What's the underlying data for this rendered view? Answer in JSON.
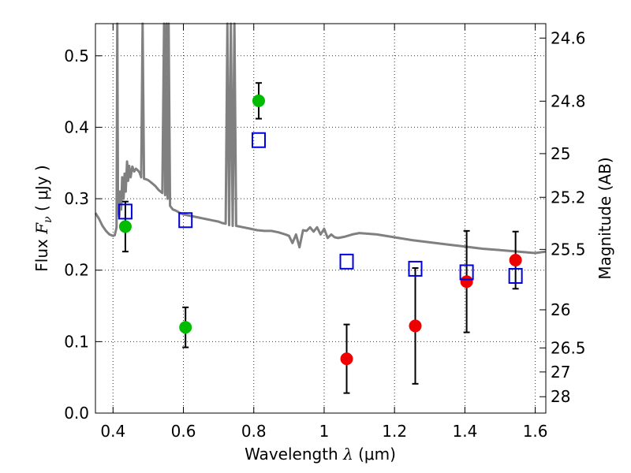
{
  "chart_data": {
    "type": "scatter",
    "xlabel": {
      "pre": "Wavelength  ",
      "sym": "λ",
      "post": " (μm)"
    },
    "ylabel": {
      "pre": "Flux  ",
      "sym": "F",
      "sub": "ν",
      "post": "  ( μJy )"
    },
    "y2label": "Magnitude (AB)",
    "xlim": [
      0.35,
      1.63
    ],
    "ylim": [
      0.0,
      0.545
    ],
    "grid": true,
    "x_ticks": [
      {
        "v": 0.4,
        "label": "0.4"
      },
      {
        "v": 0.6,
        "label": "0.6"
      },
      {
        "v": 0.8,
        "label": "0.8"
      },
      {
        "v": 1.0,
        "label": "1"
      },
      {
        "v": 1.2,
        "label": "1.2"
      },
      {
        "v": 1.4,
        "label": "1.4"
      },
      {
        "v": 1.6,
        "label": "1.6"
      }
    ],
    "y_ticks": [
      {
        "v": 0.0,
        "label": "0.0"
      },
      {
        "v": 0.1,
        "label": "0.1"
      },
      {
        "v": 0.2,
        "label": "0.2"
      },
      {
        "v": 0.3,
        "label": "0.3"
      },
      {
        "v": 0.4,
        "label": "0.4"
      },
      {
        "v": 0.5,
        "label": "0.5"
      }
    ],
    "y2_ticks": [
      {
        "mag": 24.6,
        "label": "24.6"
      },
      {
        "mag": 24.8,
        "label": "24.8"
      },
      {
        "mag": 25.0,
        "label": "25"
      },
      {
        "mag": 25.2,
        "label": "25.2"
      },
      {
        "mag": 25.5,
        "label": "25.5"
      },
      {
        "mag": 26.0,
        "label": "26"
      },
      {
        "mag": 26.5,
        "label": "26.5"
      },
      {
        "mag": 27.0,
        "label": "27"
      },
      {
        "mag": 28.0,
        "label": "28"
      }
    ],
    "series": [
      {
        "color": "#00bb00",
        "marker": "circle",
        "points": [
          {
            "x": 0.435,
            "y": 0.261,
            "err": 0.035
          },
          {
            "x": 0.606,
            "y": 0.12,
            "err": 0.028
          },
          {
            "x": 0.814,
            "y": 0.437,
            "err": 0.025
          }
        ]
      },
      {
        "color": "#ee0000",
        "marker": "circle",
        "points": [
          {
            "x": 1.064,
            "y": 0.076,
            "err": 0.048
          },
          {
            "x": 1.259,
            "y": 0.122,
            "err": 0.081
          },
          {
            "x": 1.405,
            "y": 0.184,
            "err": 0.071
          },
          {
            "x": 1.544,
            "y": 0.214,
            "err": 0.04
          }
        ]
      },
      {
        "color": "#0000dd",
        "marker": "open-square",
        "points": [
          {
            "x": 0.435,
            "y": 0.282
          },
          {
            "x": 0.606,
            "y": 0.27
          },
          {
            "x": 0.814,
            "y": 0.382
          },
          {
            "x": 1.064,
            "y": 0.212
          },
          {
            "x": 1.259,
            "y": 0.202
          },
          {
            "x": 1.405,
            "y": 0.197
          },
          {
            "x": 1.544,
            "y": 0.192
          }
        ]
      },
      {
        "color": "#808080",
        "marker": "line",
        "points": [
          [
            0.35,
            0.28
          ],
          [
            0.36,
            0.272
          ],
          [
            0.37,
            0.262
          ],
          [
            0.38,
            0.255
          ],
          [
            0.39,
            0.25
          ],
          [
            0.4,
            0.248
          ],
          [
            0.405,
            0.249
          ],
          [
            0.41,
            0.26
          ],
          [
            0.412,
            0.545
          ],
          [
            0.414,
            0.29
          ],
          [
            0.418,
            0.275
          ],
          [
            0.42,
            0.31
          ],
          [
            0.423,
            0.285
          ],
          [
            0.426,
            0.33
          ],
          [
            0.43,
            0.3
          ],
          [
            0.433,
            0.335
          ],
          [
            0.436,
            0.31
          ],
          [
            0.44,
            0.352
          ],
          [
            0.443,
            0.325
          ],
          [
            0.446,
            0.346
          ],
          [
            0.45,
            0.33
          ],
          [
            0.455,
            0.345
          ],
          [
            0.46,
            0.338
          ],
          [
            0.465,
            0.342
          ],
          [
            0.47,
            0.34
          ],
          [
            0.475,
            0.337
          ],
          [
            0.48,
            0.33
          ],
          [
            0.484,
            0.545
          ],
          [
            0.488,
            0.328
          ],
          [
            0.495,
            0.327
          ],
          [
            0.5,
            0.326
          ],
          [
            0.51,
            0.322
          ],
          [
            0.52,
            0.318
          ],
          [
            0.53,
            0.312
          ],
          [
            0.54,
            0.308
          ],
          [
            0.545,
            0.545
          ],
          [
            0.548,
            0.305
          ],
          [
            0.552,
            0.545
          ],
          [
            0.555,
            0.3
          ],
          [
            0.558,
            0.545
          ],
          [
            0.562,
            0.29
          ],
          [
            0.57,
            0.285
          ],
          [
            0.58,
            0.283
          ],
          [
            0.59,
            0.28
          ],
          [
            0.6,
            0.278
          ],
          [
            0.62,
            0.276
          ],
          [
            0.64,
            0.274
          ],
          [
            0.66,
            0.272
          ],
          [
            0.68,
            0.27
          ],
          [
            0.7,
            0.268
          ],
          [
            0.71,
            0.266
          ],
          [
            0.72,
            0.265
          ],
          [
            0.725,
            0.545
          ],
          [
            0.73,
            0.263
          ],
          [
            0.735,
            0.545
          ],
          [
            0.74,
            0.262
          ],
          [
            0.745,
            0.545
          ],
          [
            0.75,
            0.262
          ],
          [
            0.77,
            0.26
          ],
          [
            0.79,
            0.258
          ],
          [
            0.81,
            0.256
          ],
          [
            0.83,
            0.255
          ],
          [
            0.85,
            0.255
          ],
          [
            0.87,
            0.253
          ],
          [
            0.89,
            0.25
          ],
          [
            0.9,
            0.248
          ],
          [
            0.91,
            0.238
          ],
          [
            0.92,
            0.25
          ],
          [
            0.93,
            0.232
          ],
          [
            0.94,
            0.256
          ],
          [
            0.95,
            0.255
          ],
          [
            0.96,
            0.26
          ],
          [
            0.97,
            0.254
          ],
          [
            0.98,
            0.26
          ],
          [
            0.99,
            0.25
          ],
          [
            1.0,
            0.258
          ],
          [
            1.01,
            0.245
          ],
          [
            1.02,
            0.25
          ],
          [
            1.03,
            0.246
          ],
          [
            1.04,
            0.245
          ],
          [
            1.06,
            0.247
          ],
          [
            1.08,
            0.25
          ],
          [
            1.1,
            0.252
          ],
          [
            1.15,
            0.25
          ],
          [
            1.2,
            0.246
          ],
          [
            1.25,
            0.242
          ],
          [
            1.3,
            0.239
          ],
          [
            1.35,
            0.236
          ],
          [
            1.4,
            0.233
          ],
          [
            1.45,
            0.23
          ],
          [
            1.5,
            0.228
          ],
          [
            1.55,
            0.226
          ],
          [
            1.6,
            0.224
          ],
          [
            1.63,
            0.226
          ]
        ]
      }
    ]
  }
}
